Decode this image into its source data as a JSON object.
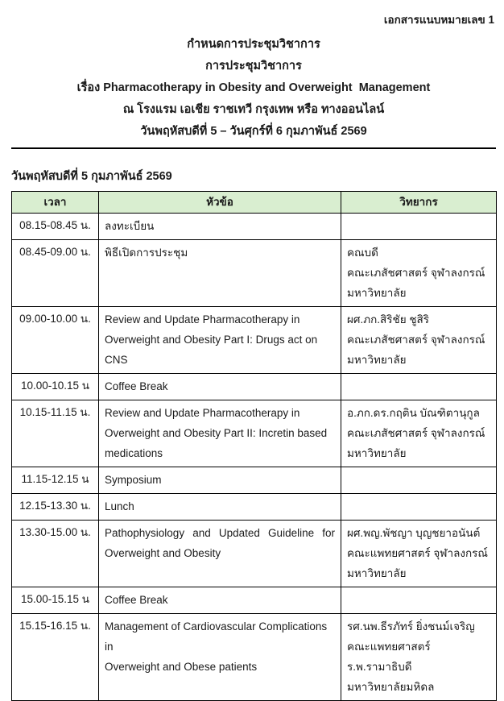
{
  "page": {
    "attachment_label": "เอกสารแนบหมายเลข 1",
    "title_lines": [
      "กำหนดการประชุมวิชาการ",
      "การประชุมวิชาการ",
      "เรื่อง Pharmacotherapy in Obesity and Overweight  Management",
      "ณ โรงแรม เอเชีย ราชเทวี กรุงเทพ หรือ ทางออนไลน์",
      "วันพฤหัสบดีที่ 5 – วันศุกร์ที่ 6 กุมภาพันธ์ 2569"
    ],
    "day_heading": "วันพฤหัสบดีที่ 5 กุมภาพันธ์ 2569"
  },
  "table": {
    "header_bg_color": "#d9eed0",
    "border_color": "#000000",
    "columns": [
      "เวลา",
      "หัวข้อ",
      "วิทยากร"
    ],
    "rows": [
      {
        "time": "08.15-08.45 น.",
        "topic": [
          "ลงทะเบียน"
        ],
        "speaker": []
      },
      {
        "time": "08.45-09.00 น.",
        "topic": [
          "พิธีเปิดการประชุม"
        ],
        "speaker": [
          "คณบดี",
          "คณะเภสัชศาสตร์ จุฬาลงกรณ์",
          "มหาวิทยาลัย"
        ]
      },
      {
        "time": "09.00-10.00 น.",
        "topic": [
          "Review and Update Pharmacotherapy in",
          "Overweight and Obesity Part I: Drugs act on CNS"
        ],
        "speaker": [
          "ผศ.ภก.สิริชัย ชูสิริ",
          "คณะเภสัชศาสตร์ จุฬาลงกรณ์",
          "มหาวิทยาลัย"
        ],
        "extra_bottom_space": true
      },
      {
        "time": "10.00-10.15 น",
        "topic": [
          "Coffee Break"
        ],
        "speaker": []
      },
      {
        "time": "10.15-11.15 น.",
        "topic": [
          "Review and Update Pharmacotherapy in",
          "Overweight and Obesity Part II: Incretin based",
          "medications"
        ],
        "speaker": [
          "อ.ภก.ดร.กฤติน บัณฑิตานุกูล",
          "คณะเภสัชศาสตร์ จุฬาลงกรณ์",
          "มหาวิทยาลัย"
        ]
      },
      {
        "time": "11.15-12.15 น",
        "topic": [
          "Symposium"
        ],
        "speaker": []
      },
      {
        "time": "12.15-13.30 น.",
        "topic": [
          "Lunch"
        ],
        "speaker": []
      },
      {
        "time": "13.30-15.00 น.",
        "topic": [
          "Pathophysiology and Updated Guideline for",
          "Overweight and Obesity"
        ],
        "topic_justify": true,
        "speaker": [
          "ผศ.พญ.พัชญา บุญชยาอนันต์",
          "คณะแพทยศาสตร์ จุฬาลงกรณ์",
          "มหาวิทยาลัย"
        ]
      },
      {
        "time": "15.00-15.15 น",
        "topic": [
          "Coffee Break"
        ],
        "speaker": []
      },
      {
        "time": "15.15-16.15 น.",
        "topic": [
          "Management of Cardiovascular Complications in",
          "Overweight and Obese patients"
        ],
        "speaker": [
          "รศ.นพ.ธีรภัทร์ ยิ่งชนม์เจริญ",
          "คณะแพทยศาสตร์ ร.พ.รามาธิบดี",
          "มหาวิทยาลัยมหิดล"
        ]
      }
    ]
  }
}
